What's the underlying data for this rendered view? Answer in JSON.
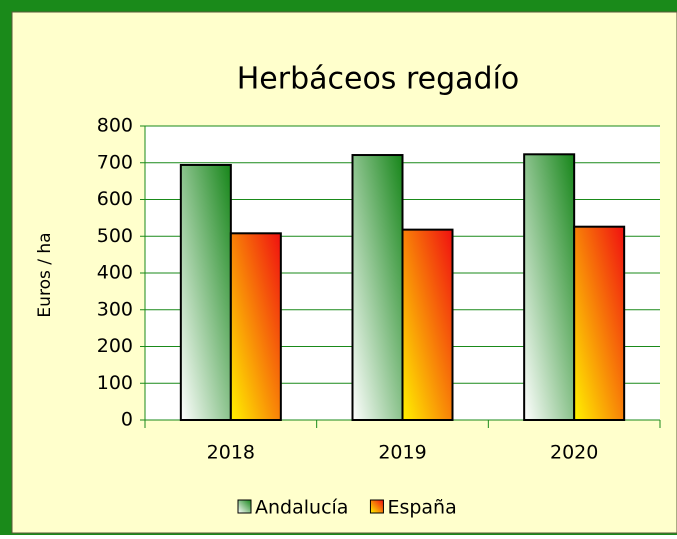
{
  "chart_data": {
    "type": "bar",
    "title": "Herbáceos regadío",
    "y_label": "Euros / ha",
    "categories": [
      "2018",
      "2019",
      "2020"
    ],
    "series": [
      {
        "name": "Andalucía",
        "color": "#17861a",
        "gradient_to": "#ffffff",
        "values": [
          694,
          721,
          723
        ]
      },
      {
        "name": "España",
        "color": "#f01010",
        "gradient_to": "#fff200",
        "values": [
          508,
          518,
          526
        ]
      }
    ],
    "ylim": [
      0,
      800
    ],
    "yticks": [
      0,
      100,
      200,
      300,
      400,
      500,
      600,
      700,
      800
    ],
    "grid": true,
    "legend": "bottom"
  }
}
